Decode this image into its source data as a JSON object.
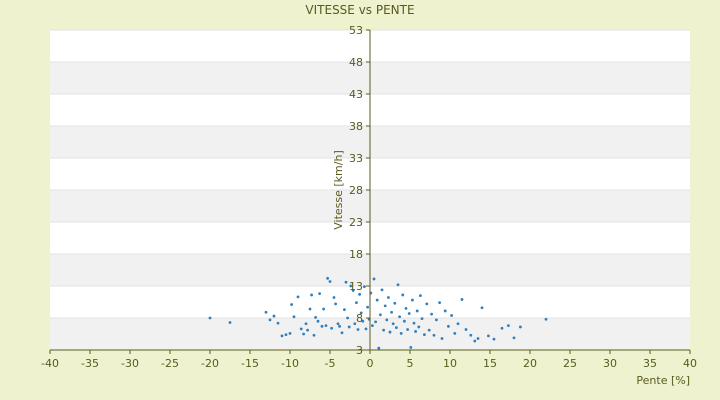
{
  "colors": {
    "page_background": "#eef2cf",
    "plot_background": "#ffffff",
    "band_shade": "#f1f1f1",
    "axis": "#5a5a1e",
    "text": "#5a5a1e",
    "point": "#2f7fbf"
  },
  "chart_data": {
    "type": "scatter",
    "title": "VITESSE vs PENTE",
    "xlabel": "Pente [%]",
    "ylabel": "Vitesse [km/h]",
    "xlim": [
      -40,
      40
    ],
    "ylim": [
      3,
      53
    ],
    "xticks": [
      "-40",
      "-35",
      "-30",
      "-25",
      "-20",
      "-15",
      "-10",
      "-5",
      "0",
      "5",
      "10",
      "15",
      "20",
      "25",
      "30",
      "35",
      "40"
    ],
    "yticks": [
      "53",
      "48",
      "43",
      "38",
      "33",
      "28",
      "23",
      "18",
      "13",
      "8",
      "3",
      "-2"
    ],
    "grid": "alternating horizontal bands",
    "legend": "none",
    "series": [
      {
        "points": [
          [
            -20,
            8
          ],
          [
            -17.5,
            7.3
          ],
          [
            -13,
            8.9
          ],
          [
            -12.5,
            7.7
          ],
          [
            -12,
            8.3
          ],
          [
            -11.5,
            7.2
          ],
          [
            -11,
            5.2
          ],
          [
            -10.5,
            5.4
          ],
          [
            -10,
            5.6
          ],
          [
            -9.8,
            10.1
          ],
          [
            -9.5,
            8.2
          ],
          [
            -9,
            11.3
          ],
          [
            -8.6,
            6.3
          ],
          [
            -8.3,
            5.5
          ],
          [
            -8,
            7.1
          ],
          [
            -7.8,
            6.1
          ],
          [
            -7.5,
            9.4
          ],
          [
            -7.3,
            11.6
          ],
          [
            -7,
            5.3
          ],
          [
            -6.8,
            8.1
          ],
          [
            -6.5,
            7.5
          ],
          [
            -6.3,
            11.8
          ],
          [
            -6,
            6.7
          ],
          [
            -5.8,
            9.4
          ],
          [
            -5.5,
            6.8
          ],
          [
            -5.3,
            14.2
          ],
          [
            -5,
            13.7
          ],
          [
            -4.8,
            6.4
          ],
          [
            -4.5,
            11.2
          ],
          [
            -4.3,
            10.2
          ],
          [
            -4,
            7.1
          ],
          [
            -3.8,
            6.7
          ],
          [
            -3.5,
            5.7
          ],
          [
            -3.2,
            9.3
          ],
          [
            -3,
            13.6
          ],
          [
            -2.8,
            8
          ],
          [
            -2.6,
            6.6
          ],
          [
            -2.4,
            13
          ],
          [
            -2.1,
            12.3
          ],
          [
            -1.9,
            7.1
          ],
          [
            -1.7,
            10.4
          ],
          [
            -1.5,
            6.2
          ],
          [
            -1.3,
            11.7
          ],
          [
            -1.1,
            8.8
          ],
          [
            -0.9,
            7.5
          ],
          [
            -0.7,
            12.9
          ],
          [
            -0.5,
            6.3
          ],
          [
            -0.3,
            9.7
          ],
          [
            -0.1,
            7.8
          ],
          [
            0.1,
            11.9
          ],
          [
            0.3,
            6.8
          ],
          [
            0.5,
            14.1
          ],
          [
            0.7,
            7.4
          ],
          [
            0.9,
            10.8
          ],
          [
            1.1,
            3.3
          ],
          [
            1.3,
            8.5
          ],
          [
            1.5,
            12.4
          ],
          [
            1.7,
            6.1
          ],
          [
            1.9,
            9.9
          ],
          [
            2.1,
            7.7
          ],
          [
            2.3,
            11.2
          ],
          [
            2.5,
            5.8
          ],
          [
            2.7,
            8.9
          ],
          [
            2.9,
            7.1
          ],
          [
            3.1,
            10.3
          ],
          [
            3.3,
            6.5
          ],
          [
            3.5,
            13.2
          ],
          [
            3.7,
            8.2
          ],
          [
            3.9,
            5.6
          ],
          [
            4.1,
            11.6
          ],
          [
            4.3,
            7.5
          ],
          [
            4.5,
            9.5
          ],
          [
            4.7,
            6.2
          ],
          [
            4.9,
            8.7
          ],
          [
            5.1,
            3.4
          ],
          [
            5.3,
            10.8
          ],
          [
            5.5,
            7.2
          ],
          [
            5.7,
            5.9
          ],
          [
            5.9,
            9.1
          ],
          [
            6.1,
            6.6
          ],
          [
            6.3,
            11.5
          ],
          [
            6.5,
            7.9
          ],
          [
            6.8,
            5.4
          ],
          [
            7.1,
            10.2
          ],
          [
            7.4,
            6.1
          ],
          [
            7.7,
            8.6
          ],
          [
            8,
            5.3
          ],
          [
            8.3,
            7.7
          ],
          [
            8.7,
            10.4
          ],
          [
            9,
            4.8
          ],
          [
            9.4,
            9.1
          ],
          [
            9.8,
            6.7
          ],
          [
            10.2,
            8.4
          ],
          [
            10.6,
            5.6
          ],
          [
            11,
            7.1
          ],
          [
            11.5,
            10.9
          ],
          [
            12,
            6.2
          ],
          [
            12.6,
            5.3
          ],
          [
            13.1,
            4.4
          ],
          [
            13.5,
            4.8
          ],
          [
            14,
            9.6
          ],
          [
            14.8,
            5.2
          ],
          [
            15.5,
            4.7
          ],
          [
            16.5,
            6.4
          ],
          [
            17.3,
            6.8
          ],
          [
            18,
            4.9
          ],
          [
            18.8,
            6.6
          ],
          [
            22,
            7.8
          ]
        ]
      }
    ]
  }
}
